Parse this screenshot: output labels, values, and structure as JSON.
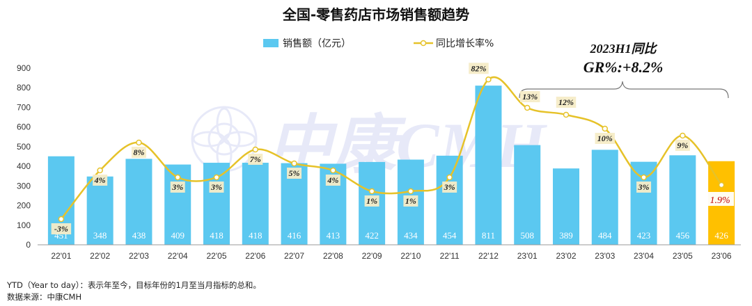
{
  "chart_data": {
    "type": "bar+line",
    "title": "全国-零售药店市场销售额趋势",
    "categories": [
      "22'01",
      "22'02",
      "22'03",
      "22'04",
      "22'05",
      "22'06",
      "22'07",
      "22'08",
      "22'09",
      "22'10",
      "22'11",
      "22'12",
      "23'01",
      "23'02",
      "23'03",
      "23'04",
      "23'05",
      "23'06"
    ],
    "series": [
      {
        "name": "销售额（亿元）",
        "type": "bar",
        "values": [
          451,
          348,
          438,
          409,
          418,
          418,
          416,
          413,
          422,
          434,
          454,
          811,
          508,
          389,
          484,
          423,
          456,
          426
        ]
      },
      {
        "name": "同比增长率%",
        "type": "line",
        "values": [
          -3,
          4,
          8,
          3,
          3,
          7,
          5,
          4,
          1,
          1,
          3,
          82,
          13,
          12,
          10,
          3,
          9,
          1.9
        ],
        "labels": [
          "-3%",
          "4%",
          "8%",
          "3%",
          "3%",
          "7%",
          "5%",
          "4%",
          "1%",
          "1%",
          "3%",
          "82%",
          "13%",
          "12%",
          "10%",
          "3%",
          "9%",
          "1.9%"
        ]
      }
    ],
    "ylim": [
      0,
      900
    ],
    "yticks": [
      0,
      100,
      200,
      300,
      400,
      500,
      600,
      700,
      800,
      900
    ],
    "colors": {
      "bar": "#5bc8f0",
      "bar_highlight": "#ffc000",
      "line": "#e6c229",
      "bar_value_text": "#ffffff",
      "last_label": "#c00000"
    },
    "annotation": {
      "line1": "2023H1同比",
      "line2": "GR%:+8.2%"
    },
    "watermark": "中康CMH"
  },
  "footnotes": {
    "ytd": "YTD（Year to day）：表示年至今，目标年份的1月至当月指标的总和。",
    "source": "数据来源：中康CMH"
  }
}
